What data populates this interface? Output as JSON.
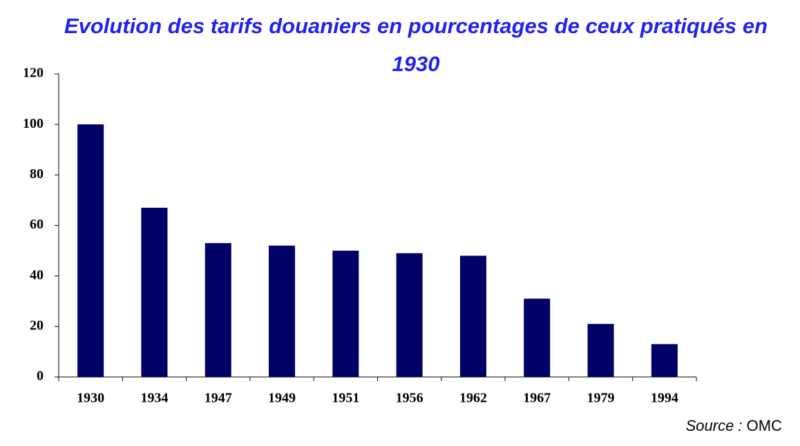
{
  "chart_data": {
    "type": "bar",
    "title": "Evolution des tarifs douaniers en pourcentages de ceux pratiqués en 1930",
    "categories": [
      "1930",
      "1934",
      "1947",
      "1949",
      "1951",
      "1956",
      "1962",
      "1967",
      "1979",
      "1994"
    ],
    "values": [
      100,
      67,
      53,
      52,
      50,
      49,
      48,
      31,
      21,
      13
    ],
    "color": "#000066",
    "ylim": [
      0,
      120
    ],
    "yticks": [
      0,
      20,
      40,
      60,
      80,
      100,
      120
    ],
    "grid": false,
    "source_label": "Source :",
    "source": "OMC"
  }
}
